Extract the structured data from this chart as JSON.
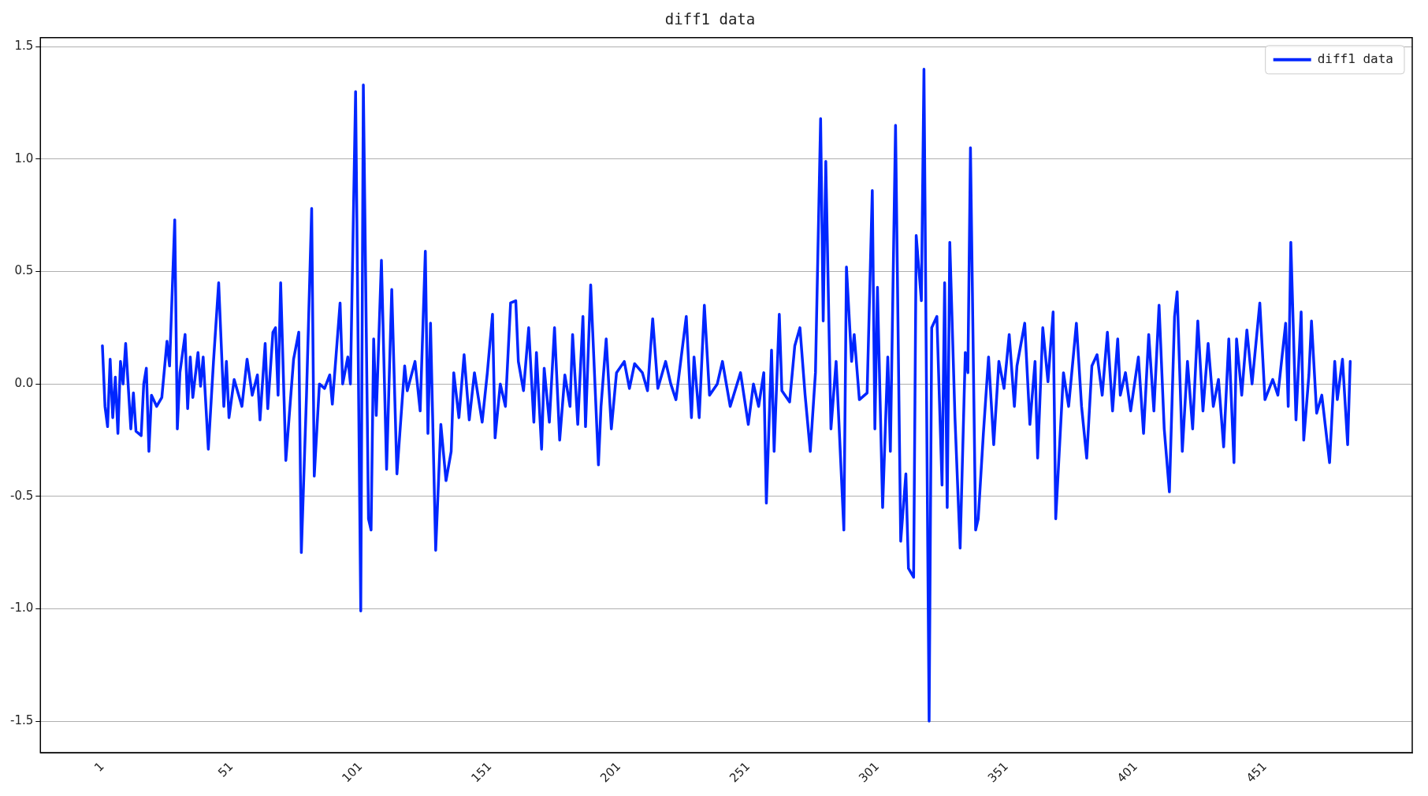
{
  "chart_data": {
    "type": "line",
    "title": "diff1 data",
    "x": [
      1,
      2,
      3,
      4,
      5,
      6,
      7,
      8,
      9,
      10,
      12,
      13,
      14,
      16,
      17,
      18,
      19,
      20,
      22,
      24,
      26,
      27,
      29,
      30,
      31,
      33,
      34,
      35,
      36,
      38,
      39,
      40,
      42,
      44,
      46,
      48,
      49,
      50,
      52,
      55,
      57,
      59,
      61,
      62,
      64,
      65,
      67,
      68,
      69,
      70,
      72,
      75,
      77,
      78,
      80,
      82,
      83,
      85,
      87,
      89,
      90,
      93,
      94,
      96,
      97,
      99,
      101,
      102,
      104,
      105,
      106,
      107,
      109,
      111,
      113,
      115,
      118,
      119,
      122,
      124,
      126,
      127,
      128,
      130,
      132,
      134,
      136,
      137,
      139,
      141,
      143,
      145,
      148,
      150,
      152,
      153,
      155,
      157,
      159,
      161,
      162,
      164,
      166,
      168,
      169,
      171,
      172,
      174,
      176,
      178,
      180,
      182,
      183,
      185,
      187,
      188,
      190,
      193,
      194,
      196,
      198,
      200,
      203,
      205,
      207,
      210,
      212,
      214,
      216,
      219,
      221,
      223,
      227,
      229,
      230,
      232,
      234,
      236,
      239,
      241,
      244,
      248,
      251,
      253,
      255,
      257,
      258,
      260,
      261,
      263,
      264,
      267,
      269,
      271,
      273,
      275,
      277,
      279,
      280,
      281,
      283,
      285,
      288,
      289,
      291,
      292,
      294,
      297,
      299,
      300,
      301,
      303,
      305,
      306,
      308,
      310,
      312,
      313,
      315,
      316,
      318,
      319,
      321,
      322,
      324,
      326,
      327,
      328,
      329,
      331,
      333,
      335,
      336,
      337,
      339,
      340,
      342,
      344,
      346,
      348,
      350,
      352,
      354,
      355,
      358,
      360,
      362,
      363,
      365,
      367,
      369,
      370,
      373,
      375,
      378,
      380,
      382,
      384,
      386,
      388,
      390,
      392,
      394,
      395,
      397,
      399,
      402,
      404,
      406,
      408,
      410,
      412,
      414,
      416,
      417,
      419,
      421,
      423,
      425,
      427,
      429,
      431,
      433,
      435,
      437,
      439,
      440,
      442,
      444,
      446,
      449,
      451,
      454,
      456,
      459,
      460,
      461,
      463,
      465,
      466,
      468,
      469,
      471,
      473,
      476,
      478,
      479,
      481,
      483,
      484
    ],
    "series": [
      {
        "name": "diff1 data",
        "color": "#0026ff",
        "values": [
          0.17,
          -0.1,
          -0.19,
          0.11,
          -0.15,
          0.03,
          -0.22,
          0.1,
          0.0,
          0.18,
          -0.2,
          -0.04,
          -0.21,
          -0.23,
          0.0,
          0.07,
          -0.3,
          -0.05,
          -0.1,
          -0.06,
          0.19,
          0.08,
          0.73,
          -0.2,
          0.05,
          0.22,
          -0.11,
          0.12,
          -0.06,
          0.14,
          -0.01,
          0.12,
          -0.29,
          0.1,
          0.45,
          -0.1,
          0.1,
          -0.15,
          0.02,
          -0.1,
          0.11,
          -0.05,
          0.04,
          -0.16,
          0.18,
          -0.11,
          0.23,
          0.25,
          -0.05,
          0.45,
          -0.34,
          0.11,
          0.23,
          -0.75,
          -0.05,
          0.78,
          -0.41,
          0.0,
          -0.02,
          0.04,
          -0.09,
          0.36,
          0.0,
          0.12,
          0.0,
          1.3,
          -1.01,
          1.33,
          -0.6,
          -0.65,
          0.2,
          -0.14,
          0.55,
          -0.38,
          0.42,
          -0.4,
          0.08,
          -0.03,
          0.1,
          -0.12,
          0.59,
          -0.22,
          0.27,
          -0.74,
          -0.18,
          -0.43,
          -0.3,
          0.05,
          -0.15,
          0.13,
          -0.16,
          0.05,
          -0.17,
          0.05,
          0.31,
          -0.24,
          0.0,
          -0.1,
          0.36,
          0.37,
          0.1,
          -0.03,
          0.25,
          -0.17,
          0.14,
          -0.29,
          0.07,
          -0.17,
          0.25,
          -0.25,
          0.04,
          -0.1,
          0.22,
          -0.18,
          0.3,
          -0.19,
          0.44,
          -0.36,
          -0.1,
          0.2,
          -0.2,
          0.05,
          0.1,
          -0.02,
          0.09,
          0.05,
          -0.03,
          0.29,
          -0.02,
          0.1,
          0.0,
          -0.07,
          0.3,
          -0.15,
          0.12,
          -0.15,
          0.35,
          -0.05,
          0.0,
          0.1,
          -0.1,
          0.05,
          -0.18,
          0.0,
          -0.1,
          0.05,
          -0.53,
          0.15,
          -0.3,
          0.31,
          -0.03,
          -0.08,
          0.17,
          0.25,
          -0.05,
          -0.3,
          0.05,
          1.18,
          0.28,
          0.99,
          -0.2,
          0.1,
          -0.65,
          0.52,
          0.1,
          0.22,
          -0.07,
          -0.04,
          0.86,
          -0.2,
          0.43,
          -0.55,
          0.12,
          -0.3,
          1.15,
          -0.7,
          -0.4,
          -0.82,
          -0.86,
          0.66,
          0.37,
          1.4,
          -1.5,
          0.25,
          0.3,
          -0.45,
          0.45,
          -0.55,
          0.63,
          -0.15,
          -0.73,
          0.14,
          0.05,
          1.05,
          -0.65,
          -0.6,
          -0.22,
          0.12,
          -0.27,
          0.1,
          -0.02,
          0.22,
          -0.1,
          0.08,
          0.27,
          -0.18,
          0.1,
          -0.33,
          0.25,
          0.01,
          0.32,
          -0.6,
          0.05,
          -0.1,
          0.27,
          -0.1,
          -0.33,
          0.08,
          0.13,
          -0.05,
          0.23,
          -0.12,
          0.2,
          -0.05,
          0.05,
          -0.12,
          0.12,
          -0.22,
          0.22,
          -0.12,
          0.35,
          -0.2,
          -0.48,
          0.3,
          0.41,
          -0.3,
          0.1,
          -0.2,
          0.28,
          -0.12,
          0.18,
          -0.1,
          0.02,
          -0.28,
          0.2,
          -0.35,
          0.2,
          -0.05,
          0.24,
          0.0,
          0.36,
          -0.07,
          0.02,
          -0.05,
          0.27,
          -0.1,
          0.63,
          -0.16,
          0.32,
          -0.25,
          0.04,
          0.28,
          -0.13,
          -0.05,
          -0.35,
          0.1,
          -0.07,
          0.11,
          -0.27,
          0.1
        ]
      }
    ],
    "xlim": [
      -23,
      508
    ],
    "xticks": [
      1,
      51,
      101,
      151,
      201,
      251,
      301,
      351,
      401,
      451
    ],
    "ylim": [
      -1.64,
      1.54
    ],
    "yticks": [
      {
        "value": -1.5,
        "label": "-1.5"
      },
      {
        "value": -1.0,
        "label": "-1.0"
      },
      {
        "value": -0.5,
        "label": "-0.5"
      },
      {
        "value": 0.0,
        "label": "0.0"
      },
      0.5,
      {
        "value": 1.0,
        "label": "1.0"
      },
      1.5
    ],
    "grid": "y",
    "legend": "top right",
    "line_style": "solid",
    "marker": "none"
  }
}
